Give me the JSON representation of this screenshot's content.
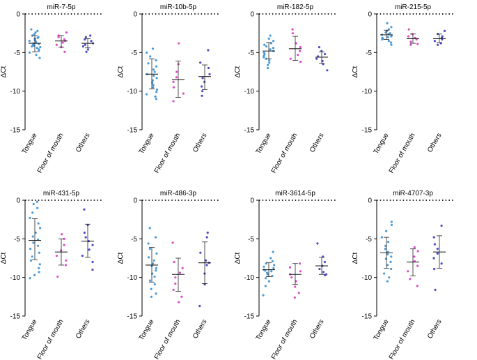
{
  "colors": {
    "tongue": "#4a9ad8",
    "floor": "#d94fc8",
    "others": "#4b4bc7",
    "axis": "#000000"
  },
  "chart_data": [
    {
      "type": "scatter",
      "title": "miR-7-5p",
      "ylabel": "ΔCt",
      "ylim": [
        -15,
        0
      ],
      "yticks": [
        0,
        -5,
        -10,
        -15
      ],
      "reference_line": 0,
      "categories": [
        "Tongue",
        "Floor of mouth",
        "Others"
      ],
      "series": [
        {
          "name": "Tongue",
          "mean": -3.8,
          "sd_low": -4.9,
          "sd_high": -2.8,
          "values": [
            -2.0,
            -2.2,
            -2.4,
            -2.6,
            -2.8,
            -3.0,
            -3.1,
            -3.2,
            -3.3,
            -3.4,
            -3.5,
            -3.6,
            -3.7,
            -3.8,
            -3.9,
            -4.0,
            -4.1,
            -4.2,
            -4.3,
            -4.4,
            -4.6,
            -4.8,
            -5.0,
            -5.3,
            -5.7
          ]
        },
        {
          "name": "Floor of mouth",
          "mean": -3.5,
          "sd_low": -4.3,
          "sd_high": -2.8,
          "values": [
            -2.4,
            -2.8,
            -3.0,
            -3.3,
            -3.5,
            -3.7,
            -4.0,
            -4.3,
            -4.9
          ]
        },
        {
          "name": "Others",
          "mean": -3.8,
          "sd_low": -4.4,
          "sd_high": -3.2,
          "values": [
            -2.8,
            -3.0,
            -3.3,
            -3.5,
            -3.8,
            -4.0,
            -4.2,
            -4.6,
            -4.9
          ]
        }
      ]
    },
    {
      "type": "scatter",
      "title": "miR-10b-5p",
      "ylabel": "ΔCt",
      "ylim": [
        -15,
        0
      ],
      "yticks": [
        0,
        -5,
        -10,
        -15
      ],
      "reference_line": 0,
      "categories": [
        "Tongue",
        "Floor of mouth",
        "Others"
      ],
      "series": [
        {
          "name": "Tongue",
          "mean": -7.8,
          "sd_low": -9.7,
          "sd_high": -5.8,
          "values": [
            -4.5,
            -5.0,
            -5.5,
            -6.0,
            -6.4,
            -6.8,
            -7.2,
            -7.5,
            -7.8,
            -8.0,
            -8.3,
            -8.6,
            -8.9,
            -9.2,
            -9.5,
            -9.8,
            -10.1,
            -10.4,
            -10.7,
            -11.0
          ]
        },
        {
          "name": "Floor of mouth",
          "mean": -8.5,
          "sd_low": -10.8,
          "sd_high": -6.1,
          "values": [
            -3.8,
            -6.5,
            -7.5,
            -8.2,
            -8.8,
            -9.5,
            -10.3,
            -11.3
          ]
        },
        {
          "name": "Others",
          "mean": -8.1,
          "sd_low": -9.8,
          "sd_high": -6.6,
          "values": [
            -4.7,
            -6.3,
            -7.0,
            -7.8,
            -8.3,
            -8.8,
            -9.4,
            -10.0,
            -10.6
          ]
        }
      ]
    },
    {
      "type": "scatter",
      "title": "miR-182-5p",
      "ylabel": "ΔCt",
      "ylim": [
        -15,
        0
      ],
      "yticks": [
        0,
        -5,
        -10,
        -15
      ],
      "reference_line": 0,
      "categories": [
        "Tongue",
        "Floor of mouth",
        "Others"
      ],
      "series": [
        {
          "name": "Tongue",
          "mean": -4.8,
          "sd_low": -5.8,
          "sd_high": -3.7,
          "values": [
            -2.8,
            -3.2,
            -3.5,
            -3.8,
            -4.0,
            -4.2,
            -4.4,
            -4.6,
            -4.8,
            -5.0,
            -5.2,
            -5.4,
            -5.6,
            -5.8,
            -6.0,
            -6.3,
            -6.6,
            -7.0
          ]
        },
        {
          "name": "Floor of mouth",
          "mean": -4.5,
          "sd_low": -6.0,
          "sd_high": -2.9,
          "values": [
            -2.0,
            -2.5,
            -3.8,
            -4.3,
            -4.8,
            -5.3,
            -5.8,
            -6.2
          ]
        },
        {
          "name": "Others",
          "mean": -5.6,
          "sd_low": -6.4,
          "sd_high": -4.9,
          "values": [
            -4.3,
            -4.8,
            -5.2,
            -5.5,
            -5.8,
            -6.1,
            -6.5,
            -7.3
          ]
        }
      ]
    },
    {
      "type": "scatter",
      "title": "miR-215-5p",
      "ylabel": "ΔCt",
      "ylim": [
        -15,
        0
      ],
      "yticks": [
        0,
        -5,
        -10,
        -15
      ],
      "reference_line": 0,
      "categories": [
        "Tongue",
        "Floor of mouth",
        "Others"
      ],
      "series": [
        {
          "name": "Tongue",
          "mean": -2.7,
          "sd_low": -3.3,
          "sd_high": -2.1,
          "values": [
            -1.2,
            -1.7,
            -2.0,
            -2.2,
            -2.4,
            -2.5,
            -2.6,
            -2.7,
            -2.8,
            -2.9,
            -3.0,
            -3.1,
            -3.2,
            -3.3,
            -3.5,
            -3.7,
            -4.0
          ]
        },
        {
          "name": "Floor of mouth",
          "mean": -3.2,
          "sd_low": -3.8,
          "sd_high": -2.6,
          "values": [
            -2.0,
            -2.6,
            -2.9,
            -3.1,
            -3.3,
            -3.6,
            -3.9,
            -4.0
          ]
        },
        {
          "name": "Others",
          "mean": -3.2,
          "sd_low": -3.7,
          "sd_high": -2.6,
          "values": [
            -2.2,
            -2.6,
            -2.9,
            -3.1,
            -3.3,
            -3.5,
            -3.8,
            -4.0
          ]
        }
      ]
    },
    {
      "type": "scatter",
      "title": "miR-431-5p",
      "ylabel": "ΔCt",
      "ylim": [
        -15,
        0
      ],
      "yticks": [
        0,
        -5,
        -10,
        -15
      ],
      "reference_line": 0,
      "categories": [
        "Tongue",
        "Floor of mouth",
        "Others"
      ],
      "series": [
        {
          "name": "Tongue",
          "mean": -5.2,
          "sd_low": -7.7,
          "sd_high": -2.4,
          "values": [
            -0.2,
            -0.5,
            -1.0,
            -1.6,
            -2.3,
            -3.0,
            -3.6,
            -4.2,
            -4.7,
            -5.1,
            -5.5,
            -5.9,
            -6.3,
            -6.8,
            -7.3,
            -7.8,
            -8.3,
            -8.8,
            -9.3,
            -9.7,
            -10.1
          ]
        },
        {
          "name": "Floor of mouth",
          "mean": -6.7,
          "sd_low": -8.4,
          "sd_high": -5.0,
          "values": [
            -4.4,
            -5.0,
            -5.8,
            -6.5,
            -7.2,
            -7.8,
            -8.4,
            -9.9
          ]
        },
        {
          "name": "Others",
          "mean": -5.3,
          "sd_low": -7.4,
          "sd_high": -3.1,
          "values": [
            -1.2,
            -3.2,
            -4.2,
            -4.8,
            -5.3,
            -5.8,
            -6.4,
            -7.2,
            -8.0,
            -9.0
          ]
        }
      ]
    },
    {
      "type": "scatter",
      "title": "miR-486-3p",
      "ylabel": "ΔCt",
      "ylim": [
        -15,
        0
      ],
      "yticks": [
        0,
        -5,
        -10,
        -15
      ],
      "reference_line": 0,
      "categories": [
        "Tongue",
        "Floor of mouth",
        "Others"
      ],
      "series": [
        {
          "name": "Tongue",
          "mean": -8.4,
          "sd_low": -10.6,
          "sd_high": -6.1,
          "values": [
            -3.6,
            -4.8,
            -5.6,
            -6.3,
            -6.9,
            -7.4,
            -7.8,
            -8.2,
            -8.5,
            -8.8,
            -9.1,
            -9.5,
            -9.9,
            -10.4,
            -10.9,
            -11.5,
            -12.1,
            -12.5
          ]
        },
        {
          "name": "Floor of mouth",
          "mean": -9.6,
          "sd_low": -11.8,
          "sd_high": -7.5,
          "values": [
            -5.5,
            -8.0,
            -8.8,
            -9.4,
            -10.0,
            -10.8,
            -11.6,
            -12.5,
            -13.2
          ]
        },
        {
          "name": "Others",
          "mean": -8.1,
          "sd_low": -10.8,
          "sd_high": -5.4,
          "values": [
            -4.2,
            -4.8,
            -6.8,
            -7.8,
            -8.1,
            -8.4,
            -9.5,
            -10.9,
            -13.7
          ]
        }
      ]
    },
    {
      "type": "scatter",
      "title": "miR-3614-5p",
      "ylabel": "ΔCt",
      "ylim": [
        -15,
        0
      ],
      "yticks": [
        0,
        -5,
        -10,
        -15
      ],
      "reference_line": 0,
      "categories": [
        "Tongue",
        "Floor of mouth",
        "Others"
      ],
      "series": [
        {
          "name": "Tongue",
          "mean": -9.0,
          "sd_low": -9.9,
          "sd_high": -8.1,
          "values": [
            -6.7,
            -7.5,
            -7.9,
            -8.2,
            -8.4,
            -8.6,
            -8.8,
            -9.0,
            -9.1,
            -9.2,
            -9.4,
            -9.6,
            -9.8,
            -10.1,
            -10.5,
            -11.1,
            -12.3
          ]
        },
        {
          "name": "Floor of mouth",
          "mean": -9.6,
          "sd_low": -10.9,
          "sd_high": -8.2,
          "values": [
            -8.2,
            -8.7,
            -9.2,
            -9.6,
            -10.0,
            -10.5,
            -11.2,
            -12.0,
            -12.6
          ]
        },
        {
          "name": "Others",
          "mean": -8.5,
          "sd_low": -9.6,
          "sd_high": -7.4,
          "values": [
            -5.6,
            -7.3,
            -8.0,
            -8.5,
            -8.9,
            -9.3,
            -9.6,
            -9.7
          ]
        }
      ]
    },
    {
      "type": "scatter",
      "title": "miR-4707-3p",
      "ylabel": "ΔCt",
      "ylim": [
        -15,
        0
      ],
      "yticks": [
        0,
        -5,
        -10,
        -15
      ],
      "reference_line": 0,
      "categories": [
        "Tongue",
        "Floor of mouth",
        "Others"
      ],
      "series": [
        {
          "name": "Tongue",
          "mean": -6.8,
          "sd_low": -8.8,
          "sd_high": -4.8,
          "values": [
            -2.8,
            -3.2,
            -4.0,
            -4.8,
            -5.4,
            -5.9,
            -6.3,
            -6.7,
            -7.0,
            -7.3,
            -7.6,
            -8.0,
            -8.4,
            -8.9,
            -9.5,
            -10.0,
            -10.5
          ]
        },
        {
          "name": "Floor of mouth",
          "mean": -8.0,
          "sd_low": -9.8,
          "sd_high": -6.3,
          "values": [
            -6.1,
            -6.6,
            -7.3,
            -7.9,
            -8.5,
            -9.2,
            -10.2,
            -11.1
          ]
        },
        {
          "name": "Others",
          "mean": -6.7,
          "sd_low": -8.8,
          "sd_high": -4.6,
          "values": [
            -3.3,
            -4.8,
            -5.7,
            -6.3,
            -6.9,
            -7.5,
            -8.2,
            -8.9,
            -11.6
          ]
        }
      ]
    }
  ]
}
